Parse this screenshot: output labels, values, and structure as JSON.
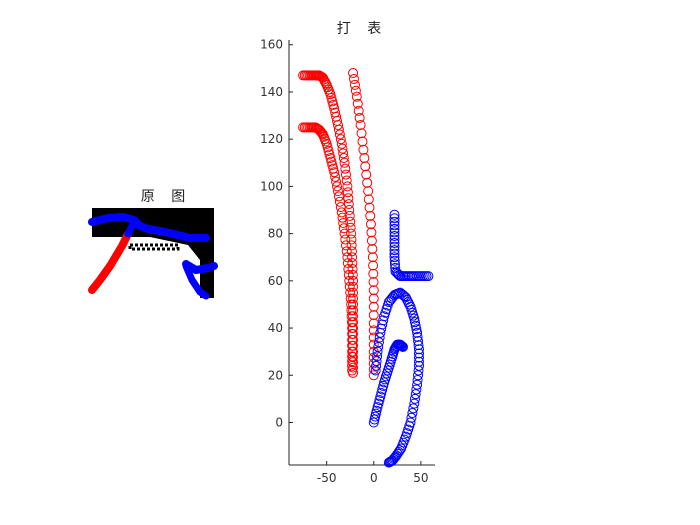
{
  "colors": {
    "red": "#ff0000",
    "blue": "#0000ff",
    "black": "#000000",
    "axis": "#262626"
  },
  "chart_data": [
    {
      "type": "image",
      "title": "原 图",
      "description_marks": [
        "red-stroke",
        "blue-stroke",
        "black-dashed-segment"
      ]
    },
    {
      "type": "scatter",
      "title": "打 表",
      "xlabel": "",
      "ylabel": "",
      "xlim": [
        -90,
        65
      ],
      "ylim": [
        -18,
        162
      ],
      "xticks": [
        -50,
        0,
        50
      ],
      "yticks": [
        0,
        20,
        40,
        60,
        80,
        100,
        120,
        140,
        160
      ],
      "grid": false,
      "marker": "circle-open",
      "series": [
        {
          "color": "red",
          "points": [
            [
              -75,
              147
            ],
            [
              -68,
              147
            ],
            [
              -62,
              147
            ],
            [
              -58,
              147
            ],
            [
              -54,
              146
            ],
            [
              -50,
              143
            ],
            [
              -46,
              139
            ],
            [
              -42,
              133
            ],
            [
              -38,
              126
            ],
            [
              -34,
              118
            ],
            [
              -31,
              110
            ],
            [
              -28,
              100
            ],
            [
              -26,
              90
            ],
            [
              -24,
              80
            ],
            [
              -23,
              70
            ],
            [
              -22,
              60
            ],
            [
              -22,
              50
            ],
            [
              -22,
              40
            ],
            [
              -22,
              30
            ],
            [
              -22,
              21
            ]
          ]
        },
        {
          "color": "red",
          "points": [
            [
              -75,
              125
            ],
            [
              -68,
              125
            ],
            [
              -62,
              125
            ],
            [
              -58,
              124
            ],
            [
              -54,
              122
            ],
            [
              -50,
              118
            ],
            [
              -46,
              112
            ],
            [
              -42,
              106
            ],
            [
              -38,
              98
            ],
            [
              -34,
              89
            ],
            [
              -31,
              80
            ],
            [
              -28,
              70
            ],
            [
              -26,
              60
            ],
            [
              -24,
              50
            ],
            [
              -23,
              40
            ],
            [
              -23,
              30
            ],
            [
              -23,
              22
            ]
          ]
        },
        {
          "color": "red",
          "points": [
            [
              -22,
              148
            ],
            [
              -18,
              138
            ],
            [
              -14,
              126
            ],
            [
              -10,
              112
            ],
            [
              -6,
              98
            ],
            [
              -3,
              84
            ],
            [
              -1,
              70
            ],
            [
              0,
              56
            ],
            [
              0,
              42
            ],
            [
              0,
              30
            ],
            [
              0,
              20
            ]
          ]
        },
        {
          "color": "blue",
          "points": [
            [
              22,
              88
            ],
            [
              22,
              82
            ],
            [
              22,
              76
            ],
            [
              22,
              70
            ],
            [
              23,
              64
            ],
            [
              28,
              62
            ],
            [
              35,
              62
            ],
            [
              42,
              62
            ],
            [
              50,
              62
            ],
            [
              58,
              62
            ]
          ]
        },
        {
          "color": "blue",
          "points": [
            [
              2,
              22
            ],
            [
              4,
              30
            ],
            [
              7,
              38
            ],
            [
              11,
              45
            ],
            [
              16,
              51
            ],
            [
              22,
              54
            ],
            [
              28,
              55
            ],
            [
              34,
              53
            ],
            [
              39,
              49
            ],
            [
              43,
              44
            ],
            [
              46,
              38
            ],
            [
              48,
              31
            ],
            [
              48,
              24
            ],
            [
              46,
              16
            ],
            [
              43,
              8
            ],
            [
              39,
              0
            ],
            [
              34,
              -6
            ],
            [
              29,
              -11
            ],
            [
              24,
              -14
            ],
            [
              20,
              -16
            ],
            [
              16,
              -17
            ]
          ]
        },
        {
          "color": "blue",
          "points": [
            [
              0,
              0
            ],
            [
              3,
              5
            ],
            [
              7,
              11
            ],
            [
              11,
              17
            ],
            [
              15,
              22
            ],
            [
              19,
              27
            ],
            [
              22,
              31
            ],
            [
              25,
              33
            ],
            [
              28,
              33
            ],
            [
              31,
              32
            ]
          ]
        }
      ]
    }
  ]
}
